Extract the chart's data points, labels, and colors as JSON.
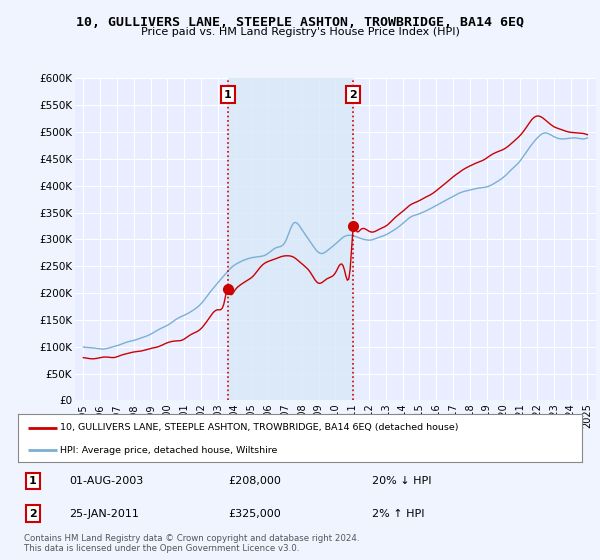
{
  "title": "10, GULLIVERS LANE, STEEPLE ASHTON, TROWBRIDGE, BA14 6EQ",
  "subtitle": "Price paid vs. HM Land Registry's House Price Index (HPI)",
  "ylim": [
    0,
    600000
  ],
  "yticks": [
    0,
    50000,
    100000,
    150000,
    200000,
    250000,
    300000,
    350000,
    400000,
    450000,
    500000,
    550000,
    600000
  ],
  "background_color": "#f0f4ff",
  "plot_bg": "#e8eeff",
  "grid_color": "#d0d8e8",
  "transaction1_x": 2003.583,
  "transaction1_y": 208000,
  "transaction2_x": 2011.07,
  "transaction2_y": 325000,
  "transaction1_label": "01-AUG-2003",
  "transaction1_price": "£208,000",
  "transaction1_hpi": "20% ↓ HPI",
  "transaction2_label": "25-JAN-2011",
  "transaction2_price": "£325,000",
  "transaction2_hpi": "2% ↑ HPI",
  "legend_line1": "10, GULLIVERS LANE, STEEPLE ASHTON, TROWBRIDGE, BA14 6EQ (detached house)",
  "legend_line2": "HPI: Average price, detached house, Wiltshire",
  "footer": "Contains HM Land Registry data © Crown copyright and database right 2024.\nThis data is licensed under the Open Government Licence v3.0.",
  "hpi_color": "#7bafd4",
  "property_color": "#cc0000",
  "dashed_color": "#cc0000",
  "shade_color": "#d8e8f8",
  "xlim_start": 1994.5,
  "xlim_end": 2025.5
}
